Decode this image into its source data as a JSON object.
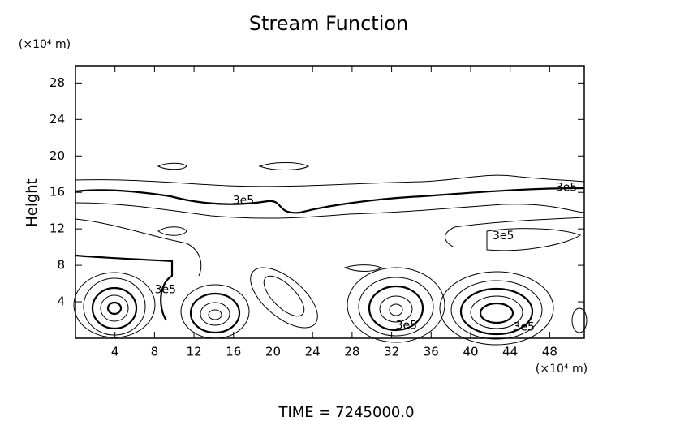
{
  "chart_data": {
    "type": "contour",
    "title": "Stream Function",
    "y_label": "Height",
    "y_units": "(×10⁴ m)",
    "x_units": "(×10⁴ m)",
    "footer": "TIME = 7245000.0",
    "xlim": [
      0,
      51.5
    ],
    "ylim": [
      0,
      29.9
    ],
    "xticks": [
      4,
      8,
      12,
      16,
      20,
      24,
      28,
      32,
      36,
      40,
      44,
      48
    ],
    "yticks": [
      4,
      8,
      12,
      16,
      20,
      24,
      28
    ],
    "annotations": [
      {
        "text": "3e5",
        "x": 17,
        "y": 15.1
      },
      {
        "text": "3e5",
        "x": 49.7,
        "y": 16.5
      },
      {
        "text": "3e5",
        "x": 43.3,
        "y": 11.2
      },
      {
        "text": "3e5",
        "x": 9.1,
        "y": 5.3
      },
      {
        "text": "3e5",
        "x": 33.5,
        "y": 1.4
      },
      {
        "text": "3e5",
        "x": 45.4,
        "y": 1.2
      }
    ]
  }
}
